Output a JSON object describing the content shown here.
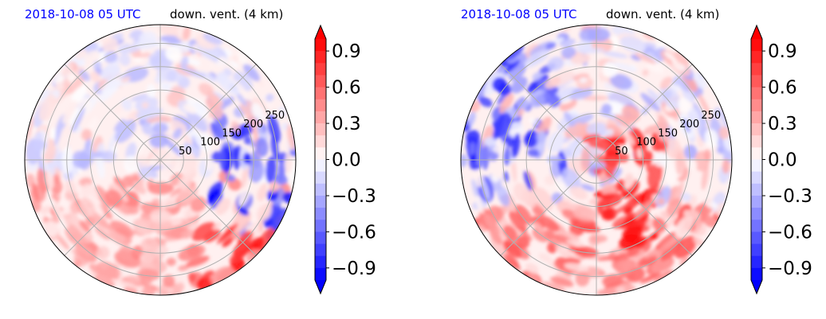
{
  "chart_data": [
    {
      "type": "polar_contourf",
      "title_left": "2018-10-08 05 UTC",
      "title_right": "down. vent. (4 km)",
      "title_left_color": "#0000ff",
      "radial_ticks": [
        "50",
        "100",
        "150",
        "200",
        "250"
      ],
      "radial_values": [
        50,
        100,
        150,
        200,
        250
      ],
      "rmax": 290,
      "angular_gridlines_deg": [
        0,
        45,
        90,
        135,
        180,
        225,
        270,
        315
      ],
      "colorbar": {
        "ticks": [
          "0.9",
          "0.6",
          "0.3",
          "0.0",
          "−0.3",
          "−0.6",
          "−0.9"
        ],
        "tick_values": [
          0.9,
          0.6,
          0.3,
          0.0,
          -0.3,
          -0.6,
          -0.9
        ],
        "range": [
          -1.0,
          1.0
        ],
        "extend": "both",
        "colormap": "bwr"
      },
      "field": {
        "min": -1.0,
        "max": 1.0,
        "note_colors": {
          "positive": "#ff0000",
          "negative": "#0000ff",
          "zero": "#ffffff"
        }
      }
    },
    {
      "type": "polar_contourf",
      "title_left": "2018-10-08 05 UTC",
      "title_right": "down. vent. (4 km)",
      "title_left_color": "#0000ff",
      "radial_ticks": [
        "50",
        "100",
        "150",
        "200",
        "250"
      ],
      "radial_values": [
        50,
        100,
        150,
        200,
        250
      ],
      "rmax": 290,
      "angular_gridlines_deg": [
        0,
        45,
        90,
        135,
        180,
        225,
        270,
        315
      ],
      "colorbar": {
        "ticks": [
          "0.9",
          "0.6",
          "0.3",
          "0.0",
          "−0.3",
          "−0.6",
          "−0.9"
        ],
        "tick_values": [
          0.9,
          0.6,
          0.3,
          0.0,
          -0.3,
          -0.6,
          -0.9
        ],
        "range": [
          -1.0,
          1.0
        ],
        "extend": "both",
        "colormap": "bwr"
      },
      "field": {
        "min": -1.0,
        "max": 1.0,
        "note_colors": {
          "positive": "#ff0000",
          "negative": "#0000ff",
          "zero": "#ffffff"
        }
      }
    }
  ]
}
